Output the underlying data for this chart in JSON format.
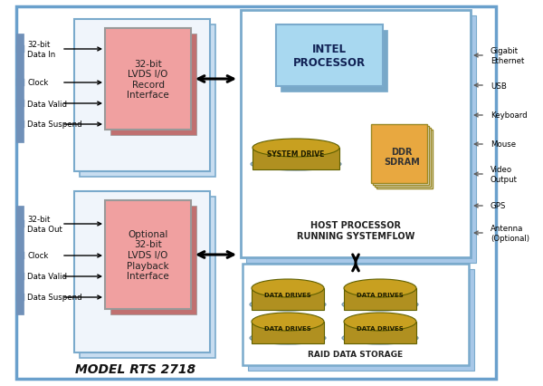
{
  "title": "MODEL RTS 2718",
  "bg_color": "#ffffff",
  "outer_border_color": "#6aa0cc",
  "lvds_record_text": "32-bit\nLVDS I/O\nRecord\nInterface",
  "lvds_playback_text": "Optional\n32-bit\nLVDS I/O\nPlayback\nInterface",
  "lvds_fill": "#f0a0a0",
  "lvds_shadow": "#c07070",
  "lvds_border": "#999999",
  "host_box_fill": "#ffffff",
  "host_box_shadow": "#a8c8e8",
  "host_box_border": "#7aaacc",
  "host_label": "HOST PROCESSOR\nRUNNING SYSTEMFLOW",
  "intel_fill": "#a8d8f0",
  "intel_shadow": "#78a8c8",
  "intel_border": "#7aaacc",
  "intel_text": "INTEL\nPROCESSOR",
  "ddr_fill": "#e8a840",
  "ddr_shadow": "#c8c8c8",
  "ddr_border": "#888888",
  "ddr_text": "DDR\nSDRAM",
  "sys_drive_top": "#c8a020",
  "sys_drive_mid": "#b09020",
  "sys_drive_bot": "#606000",
  "sys_drive_rim": "#a0c0d8",
  "sys_drive_text": "SYSTEM DRIVE",
  "raid_box_fill": "#ffffff",
  "raid_box_shadow": "#a8c8e8",
  "raid_box_border": "#7aaacc",
  "raid_label": "RAID DATA STORAGE",
  "data_drive_top": "#c8a020",
  "data_drive_mid": "#b09020",
  "data_drive_bot": "#606000",
  "data_drive_rim": "#a0c0d8",
  "data_drive_text": "DATA DRIVES",
  "outer_fill": "#c8ddf0",
  "outer_border": "#7aaacc",
  "connector_color": "#7090b8",
  "arrow_color": "#000000",
  "right_arrow_color": "#606060",
  "left_labels_top": [
    [
      "32-bit\nData In",
      55
    ],
    [
      "Clock",
      92
    ],
    [
      "Data Valid",
      115
    ],
    [
      "Data Suspend",
      138
    ]
  ],
  "left_labels_bot": [
    [
      "32-bit\nData Out",
      248
    ],
    [
      "Clock",
      283
    ],
    [
      "Data Valid",
      306
    ],
    [
      "Data Suspend",
      329
    ]
  ],
  "right_outputs": [
    [
      "Gigabit\nEthernet",
      62
    ],
    [
      "USB",
      95
    ],
    [
      "Keyboard",
      128
    ],
    [
      "Mouse",
      160
    ],
    [
      "Video\nOutput",
      193
    ],
    [
      "GPS",
      228
    ],
    [
      "Antenna\n(Optional)",
      258
    ]
  ]
}
